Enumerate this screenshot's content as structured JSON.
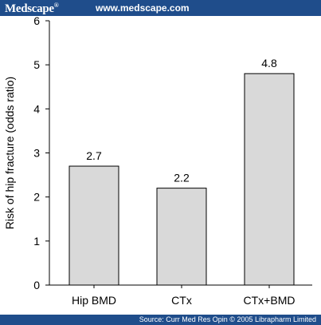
{
  "header": {
    "brand": "Medscape",
    "brand_mark": "®",
    "url": "www.medscape.com"
  },
  "footer": {
    "source": "Source: Curr Med Res Opin © 2005 Librapharm Limited"
  },
  "colors": {
    "bar_fill": "#d9d9d9",
    "bar_stroke": "#000000",
    "band": "#1f4d8b"
  },
  "chart_data": {
    "type": "bar",
    "title": "",
    "xlabel": "",
    "ylabel": "Risk of hip fracture (odds ratio)",
    "categories": [
      "Hip BMD",
      "CTx",
      "CTx+BMD"
    ],
    "values": [
      2.7,
      2.2,
      4.8
    ],
    "data_labels": [
      "2.7",
      "2.2",
      "4.8"
    ],
    "ylim": [
      0,
      6
    ],
    "yticks": [
      "0",
      "1",
      "2",
      "3",
      "4",
      "5",
      "6"
    ],
    "grid": false,
    "legend": "none"
  }
}
